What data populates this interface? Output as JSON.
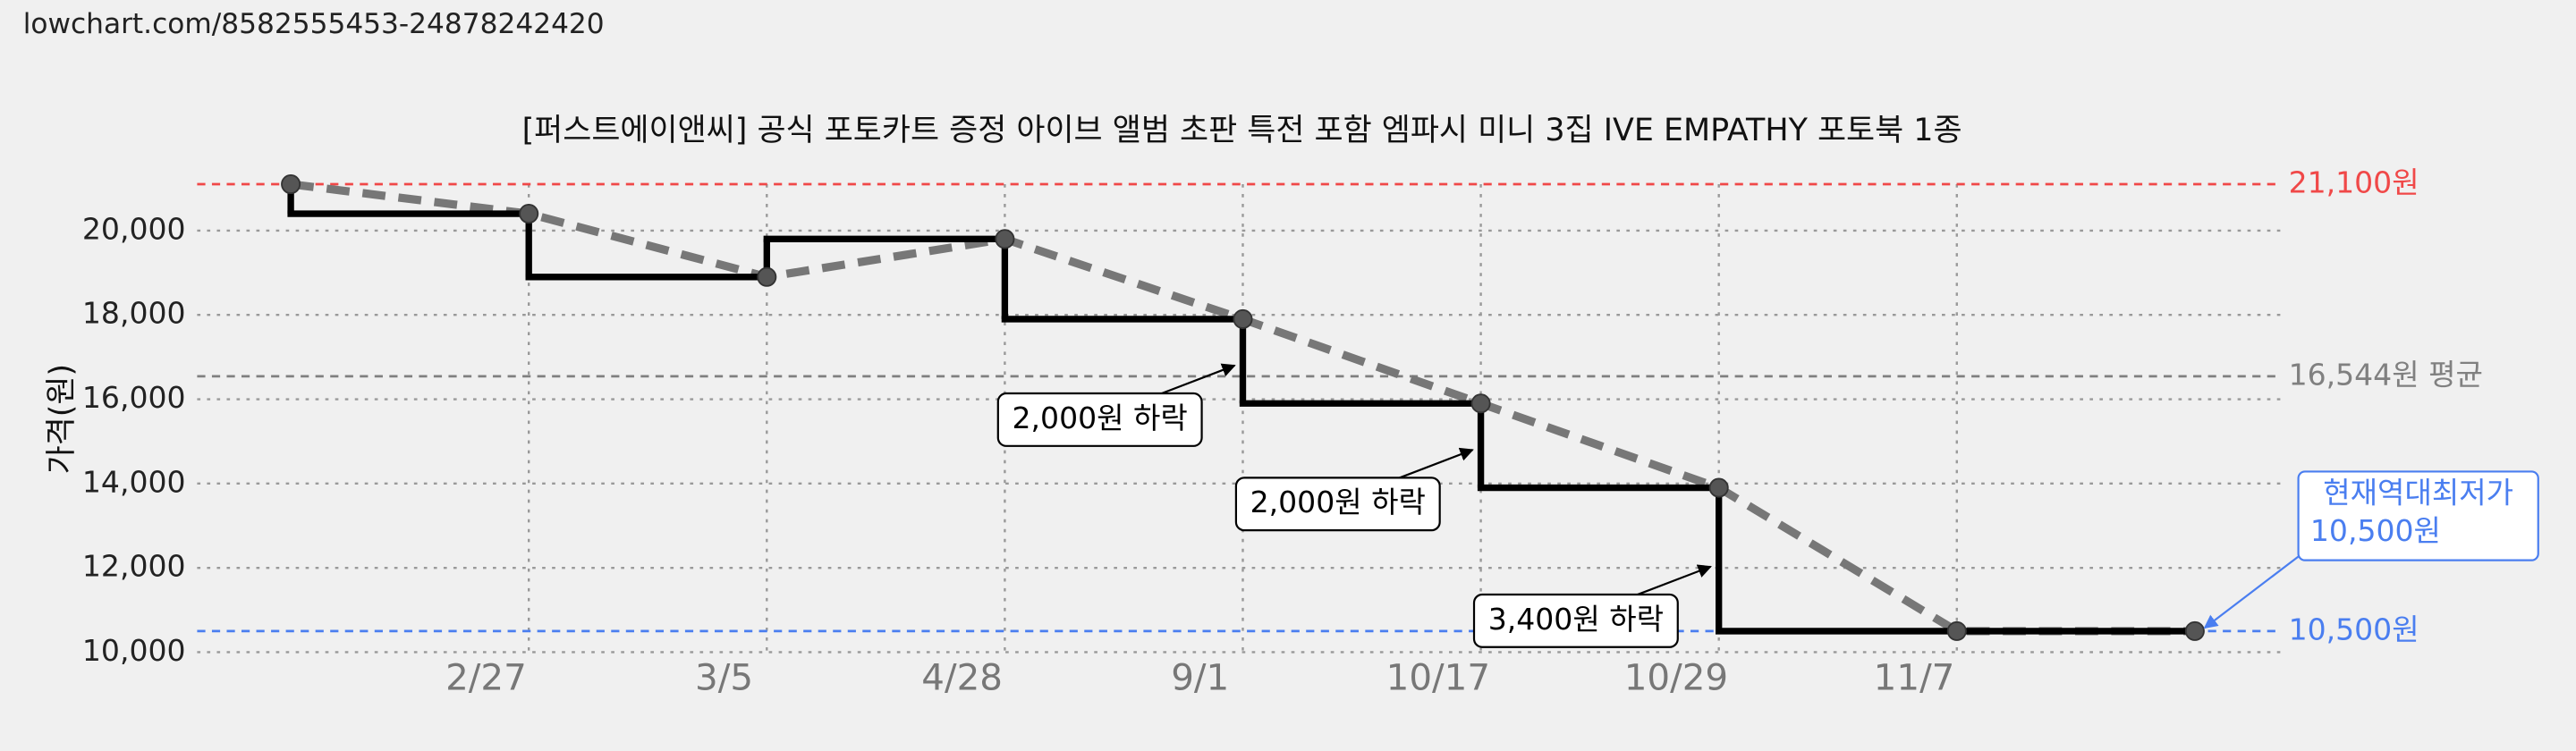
{
  "chart_data": {
    "type": "line",
    "source_url": "lowchart.com/8582555453-24878242420",
    "title": "[퍼스트에이앤씨] 공식 포토카트 증정 아이브 앨범 초판 특전 포함 엠파시 미니 3집 IVE EMPATHY 포토북 1종",
    "ylabel": "가격(원)",
    "categories": [
      null,
      "2/27",
      "3/5",
      "4/28",
      "9/1",
      "10/17",
      "10/29",
      "11/7",
      null
    ],
    "series": [
      {
        "color": "#000000",
        "trend_color": "#777777",
        "values": [
          21100,
          20400,
          18900,
          19800,
          17900,
          15900,
          13900,
          10500,
          10500
        ]
      }
    ],
    "ylim": [
      10000,
      21100
    ],
    "yticks": [
      {
        "value": 10000,
        "label": "10,000"
      },
      {
        "value": 12000,
        "label": "12,000"
      },
      {
        "value": 14000,
        "label": "14,000"
      },
      {
        "value": 16000,
        "label": "16,000"
      },
      {
        "value": 18000,
        "label": "18,000"
      },
      {
        "value": 20000,
        "label": "20,000"
      }
    ],
    "grid": true,
    "reference_lines": [
      {
        "value": 21100,
        "label": "21,100원",
        "color": "#f04848"
      },
      {
        "value": 16544,
        "label": "16,544원 평균",
        "color": "#808080"
      },
      {
        "value": 10500,
        "label": "10,500원",
        "color": "#4a7ef0"
      }
    ],
    "annotations": [
      {
        "index": 4,
        "value": 2000,
        "label": "2,000원 하락"
      },
      {
        "index": 5,
        "value": 2000,
        "label": "2,000원 하락"
      },
      {
        "index": 6,
        "value": 3400,
        "label": "3,400원 하락"
      }
    ],
    "lowest": {
      "label": "현재역대최저가",
      "value": 10500,
      "value_label": "10,500원",
      "color": "#4a7ef0"
    }
  }
}
